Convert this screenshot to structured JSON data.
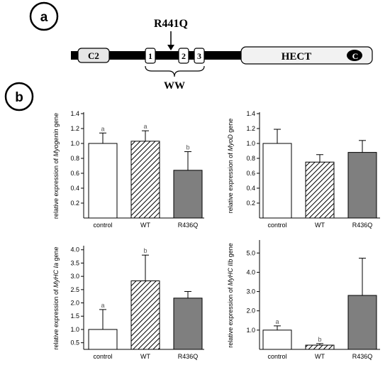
{
  "panel_a": {
    "label": "a",
    "mutation": "R441Q",
    "domains": {
      "c2": "C2",
      "hect": "HECT",
      "hect_symbol": "C",
      "ww_label": "WW",
      "ww_repeats": [
        "1",
        "2",
        "3"
      ]
    }
  },
  "panel_b": {
    "label": "b"
  },
  "chart_data": [
    {
      "type": "bar",
      "title": "",
      "ylabel_prefix": "relative expression of ",
      "ylabel_gene": "Myogenin",
      "ylabel_suffix": " gene",
      "categories": [
        "control",
        "WT",
        "R436Q"
      ],
      "values": [
        1.0,
        1.03,
        0.64
      ],
      "errors": [
        0.14,
        0.14,
        0.25
      ],
      "annotations": [
        "a",
        "a",
        "b"
      ],
      "yticks": [
        "0.2",
        "0.4",
        "0.6",
        "0.8",
        "1.0",
        "1.2",
        "1.4"
      ],
      "ylim": [
        0,
        1.4
      ]
    },
    {
      "type": "bar",
      "title": "",
      "ylabel_prefix": "relative expression of ",
      "ylabel_gene": "MyoD",
      "ylabel_suffix": " gene",
      "categories": [
        "control",
        "WT",
        "R436Q"
      ],
      "values": [
        1.0,
        0.75,
        0.88
      ],
      "errors": [
        0.19,
        0.1,
        0.16
      ],
      "annotations": [
        "",
        "",
        ""
      ],
      "yticks": [
        "0.2",
        "0.4",
        "0.6",
        "0.8",
        "1.0",
        "1.2",
        "1.4"
      ],
      "ylim": [
        0,
        1.4
      ]
    },
    {
      "type": "bar",
      "title": "",
      "ylabel_prefix": "relative expression of ",
      "ylabel_gene": "MyHC Ia",
      "ylabel_suffix": " gene",
      "categories": [
        "control",
        "WT",
        "R436Q"
      ],
      "values": [
        1.0,
        2.83,
        2.18
      ],
      "errors": [
        0.75,
        0.97,
        0.25
      ],
      "annotations": [
        "a",
        "b",
        ""
      ],
      "yticks": [
        "0.5",
        "1.0",
        "1.5",
        "2.0",
        "2.5",
        "3.0",
        "3.5",
        "4.0"
      ],
      "ylim": [
        0.25,
        4.1
      ]
    },
    {
      "type": "bar",
      "title": "",
      "ylabel_prefix": "relative expression of ",
      "ylabel_gene": "MyHC IIb",
      "ylabel_suffix": " gene",
      "categories": [
        "control",
        "WT",
        "R436Q"
      ],
      "values": [
        1.0,
        0.22,
        2.8
      ],
      "errors": [
        0.22,
        0.08,
        1.93
      ],
      "annotations": [
        "a",
        "b",
        ""
      ],
      "yticks": [
        "1.0",
        "2.0",
        "3.0",
        "4.0",
        "5.0"
      ],
      "ylim": [
        0,
        5.6
      ]
    }
  ],
  "colors": {
    "ink": "#000000",
    "bar_white": "#ffffff",
    "bar_gray": "#7f7f7f",
    "domain_gray": "#e6e6e6",
    "letter_gray": "#555555"
  }
}
